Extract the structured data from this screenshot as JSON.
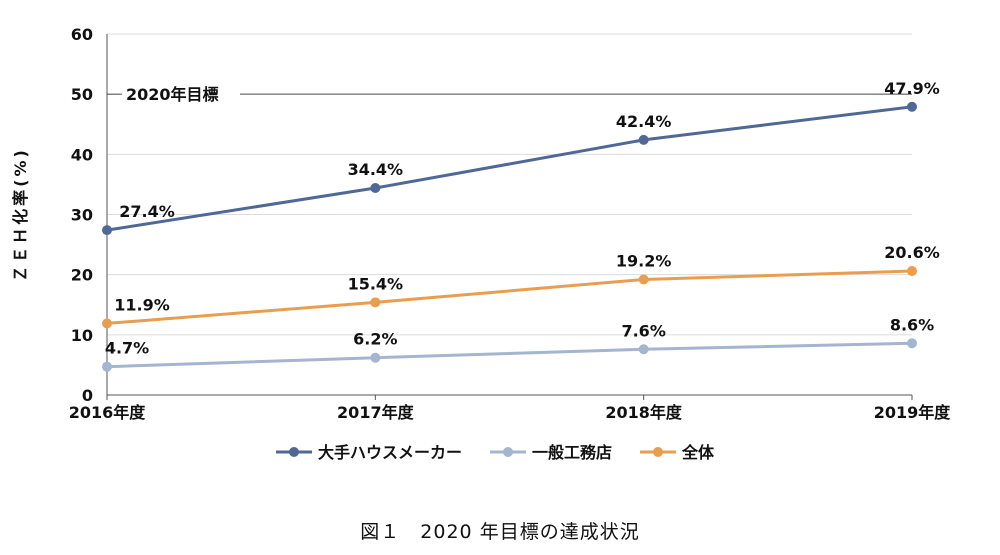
{
  "chart_data": {
    "type": "line",
    "categories": [
      "2016年度",
      "2017年度",
      "2018年度",
      "2019年度"
    ],
    "ylabel": "ＺＥＨ化率(%)",
    "ylim": [
      0,
      60
    ],
    "yticks": [
      0,
      10,
      20,
      30,
      40,
      50,
      60
    ],
    "grid": true,
    "legend_position": "bottom",
    "target_line": {
      "value": 50,
      "label": "2020年目標"
    },
    "series": [
      {
        "name": "大手ハウスメーカー",
        "color": "#4f6896",
        "values": [
          27.4,
          34.4,
          42.4,
          47.9
        ],
        "labels": [
          "27.4%",
          "34.4%",
          "42.4%",
          "47.9%"
        ]
      },
      {
        "name": "一般工務店",
        "color": "#a3b5d0",
        "values": [
          4.7,
          6.2,
          7.6,
          8.6
        ],
        "labels": [
          "4.7%",
          "6.2%",
          "7.6%",
          "8.6%"
        ]
      },
      {
        "name": "全体",
        "color": "#e89d4f",
        "values": [
          11.9,
          15.4,
          19.2,
          20.6
        ],
        "labels": [
          "11.9%",
          "15.4%",
          "19.2%",
          "20.6%"
        ]
      }
    ]
  },
  "caption": "図１　2020 年目標の達成状況"
}
